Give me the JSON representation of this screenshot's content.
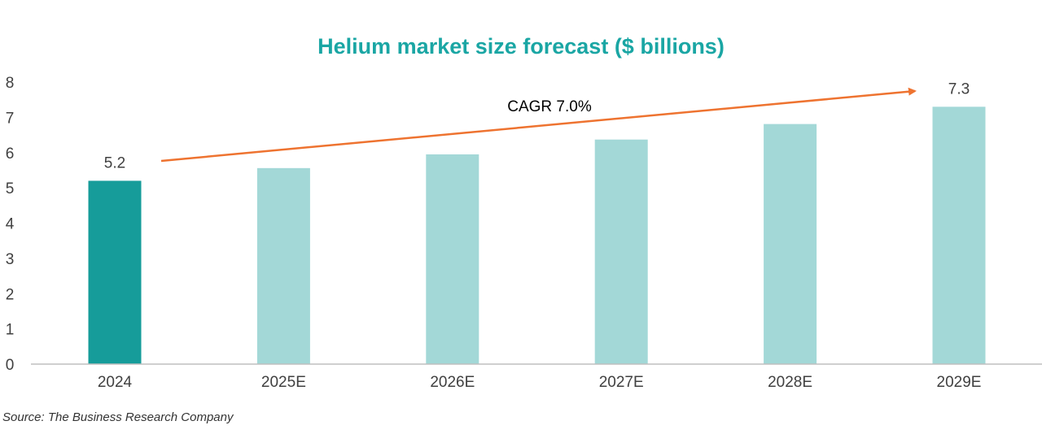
{
  "chart_data": {
    "type": "bar",
    "title": "Helium market size forecast ($ billions)",
    "xlabel": "",
    "ylabel": "",
    "categories": [
      "2024",
      "2025E",
      "2026E",
      "2027E",
      "2028E",
      "2029E"
    ],
    "values": [
      5.2,
      5.56,
      5.95,
      6.37,
      6.81,
      7.3
    ],
    "data_labels": {
      "0": "5.2",
      "5": "7.3"
    },
    "ylim": [
      0,
      8
    ],
    "yticks": [
      "0",
      "1",
      "2",
      "3",
      "4",
      "5",
      "6",
      "7",
      "8"
    ],
    "grid": false,
    "annotation": "CAGR 7.0%",
    "colors": {
      "actual": "#169c9a",
      "forecast": "#a3d8d7",
      "arrow": "#ee7330",
      "title": "#1aa6a4"
    }
  },
  "source": "Source: The Business Research Company"
}
